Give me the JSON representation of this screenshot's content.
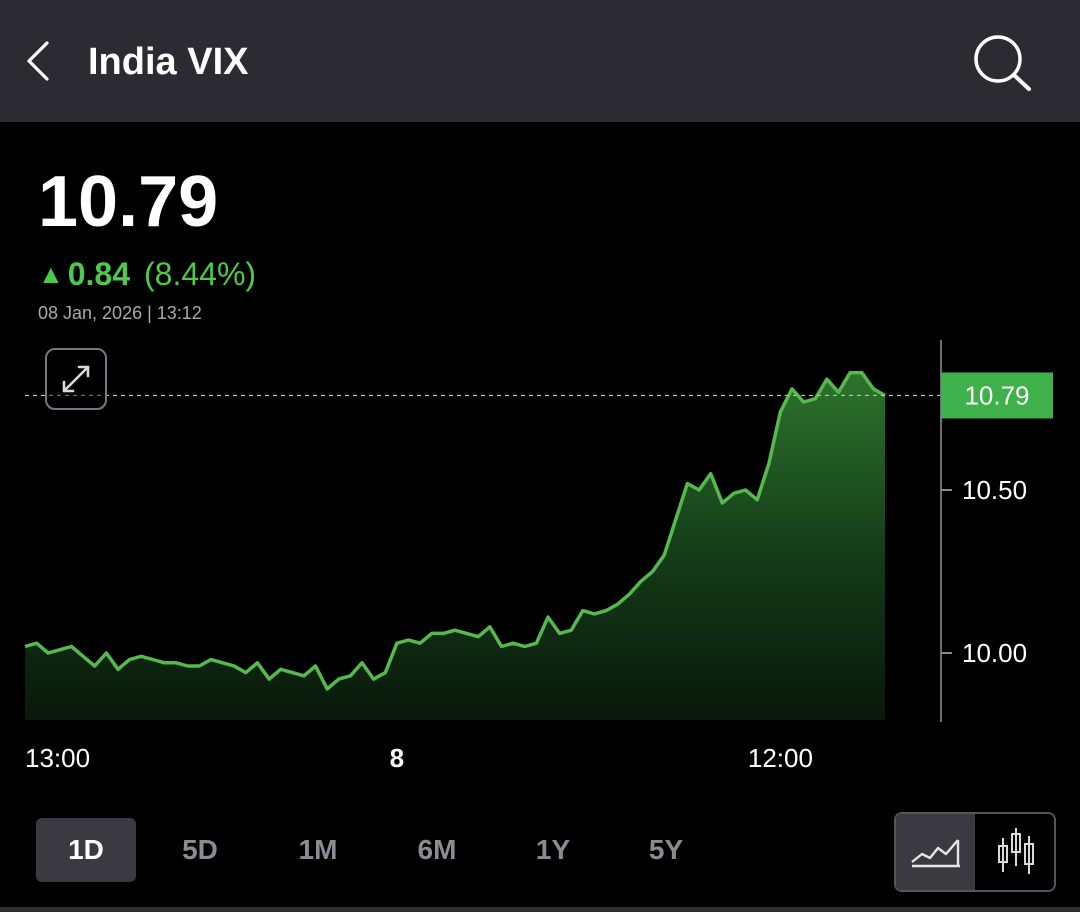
{
  "header": {
    "title": "India VIX",
    "back_icon": "chevron-left-icon",
    "search_icon": "search-icon"
  },
  "quote": {
    "price": "10.79",
    "change_arrow": "▲",
    "change_abs": "0.84",
    "change_pct": "(8.44%)",
    "timestamp": "08 Jan, 2026 | 13:12",
    "up_color": "#4ec94a"
  },
  "chart_data": {
    "type": "area",
    "y_ticks": [
      10.0,
      10.5
    ],
    "y_tick_labels": [
      "10.00",
      "10.50"
    ],
    "current_value": 10.79,
    "current_label": "10.79",
    "x_tick_labels": [
      {
        "label": "13:00",
        "bold": false,
        "index": 0
      },
      {
        "label": "8",
        "bold": true,
        "index": 32
      },
      {
        "label": "12:00",
        "bold": false,
        "index": 65
      }
    ],
    "values": [
      10.02,
      10.03,
      10.0,
      10.01,
      10.02,
      9.99,
      9.96,
      10.0,
      9.95,
      9.98,
      9.99,
      9.98,
      9.97,
      9.97,
      9.96,
      9.96,
      9.98,
      9.97,
      9.96,
      9.94,
      9.97,
      9.92,
      9.95,
      9.94,
      9.93,
      9.96,
      9.89,
      9.92,
      9.93,
      9.97,
      9.92,
      9.94,
      10.03,
      10.04,
      10.03,
      10.06,
      10.06,
      10.07,
      10.06,
      10.05,
      10.08,
      10.02,
      10.03,
      10.02,
      10.03,
      10.11,
      10.06,
      10.07,
      10.13,
      10.12,
      10.13,
      10.15,
      10.18,
      10.22,
      10.25,
      10.3,
      10.41,
      10.52,
      10.5,
      10.55,
      10.46,
      10.49,
      10.5,
      10.47,
      10.58,
      10.74,
      10.81,
      10.77,
      10.78,
      10.84,
      10.8,
      10.86,
      10.86,
      10.81,
      10.79
    ],
    "line_color": "#56b84f",
    "current_tag_color": "#3fb14a"
  },
  "ranges": [
    "1D",
    "5D",
    "1M",
    "6M",
    "1Y",
    "5Y"
  ],
  "active_range": "1D",
  "chart_types": {
    "line_icon": "line-chart-icon",
    "candle_icon": "candlestick-icon"
  }
}
